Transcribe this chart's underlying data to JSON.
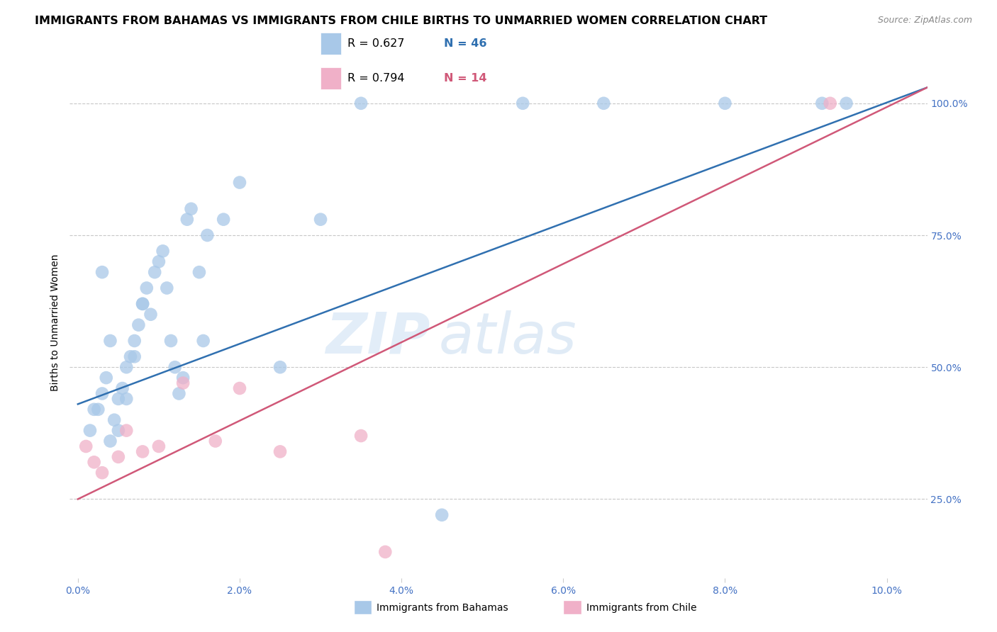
{
  "title": "IMMIGRANTS FROM BAHAMAS VS IMMIGRANTS FROM CHILE BIRTHS TO UNMARRIED WOMEN CORRELATION CHART",
  "source": "Source: ZipAtlas.com",
  "ylabel_left": "Births to Unmarried Women",
  "ylabel_right_ticks": [
    25.0,
    50.0,
    75.0,
    100.0
  ],
  "xlabel_bottom_ticks": [
    0.0,
    2.0,
    4.0,
    6.0,
    8.0,
    10.0
  ],
  "xlim": [
    -0.1,
    10.5
  ],
  "ylim": [
    10.0,
    107.0
  ],
  "watermark_zip": "ZIP",
  "watermark_atlas": "atlas",
  "legend_blue_r": "R = 0.627",
  "legend_blue_n": "N = 46",
  "legend_pink_r": "R = 0.794",
  "legend_pink_n": "N = 14",
  "blue_color": "#a8c8e8",
  "blue_line_color": "#3070b0",
  "pink_color": "#f0b0c8",
  "pink_line_color": "#d05878",
  "blue_scatter_x": [
    0.15,
    0.25,
    0.3,
    0.35,
    0.4,
    0.45,
    0.5,
    0.55,
    0.6,
    0.65,
    0.7,
    0.75,
    0.8,
    0.85,
    0.9,
    0.95,
    1.0,
    1.05,
    1.1,
    1.15,
    1.2,
    1.25,
    1.3,
    1.35,
    1.4,
    1.5,
    1.55,
    1.6,
    1.8,
    2.0,
    2.5,
    3.0,
    3.5,
    4.5,
    5.5,
    6.5,
    8.0,
    9.2,
    9.5,
    0.2,
    0.3,
    0.4,
    0.5,
    0.6,
    0.7,
    0.8
  ],
  "blue_scatter_y": [
    38.0,
    42.0,
    45.0,
    48.0,
    36.0,
    40.0,
    44.0,
    46.0,
    50.0,
    52.0,
    55.0,
    58.0,
    62.0,
    65.0,
    60.0,
    68.0,
    70.0,
    72.0,
    65.0,
    55.0,
    50.0,
    45.0,
    48.0,
    78.0,
    80.0,
    68.0,
    55.0,
    75.0,
    78.0,
    85.0,
    50.0,
    78.0,
    100.0,
    22.0,
    100.0,
    100.0,
    100.0,
    100.0,
    100.0,
    42.0,
    68.0,
    55.0,
    38.0,
    44.0,
    52.0,
    62.0
  ],
  "pink_scatter_x": [
    0.1,
    0.2,
    0.3,
    0.5,
    0.6,
    0.8,
    1.0,
    1.3,
    1.7,
    2.0,
    2.5,
    3.5,
    3.8,
    9.3
  ],
  "pink_scatter_y": [
    35.0,
    32.0,
    30.0,
    33.0,
    38.0,
    34.0,
    35.0,
    47.0,
    36.0,
    46.0,
    34.0,
    37.0,
    15.0,
    100.0
  ],
  "blue_line_x0": 0.0,
  "blue_line_x1": 10.5,
  "blue_line_y0": 43.0,
  "blue_line_y1": 103.0,
  "pink_line_x0": 0.0,
  "pink_line_x1": 10.5,
  "pink_line_y0": 25.0,
  "pink_line_y1": 103.0,
  "title_fontsize": 11.5,
  "source_fontsize": 9,
  "axis_tick_color": "#4472c4",
  "grid_color": "#c8c8c8",
  "background_color": "#ffffff",
  "legend_label_blue": "Immigrants from Bahamas",
  "legend_label_pink": "Immigrants from Chile"
}
